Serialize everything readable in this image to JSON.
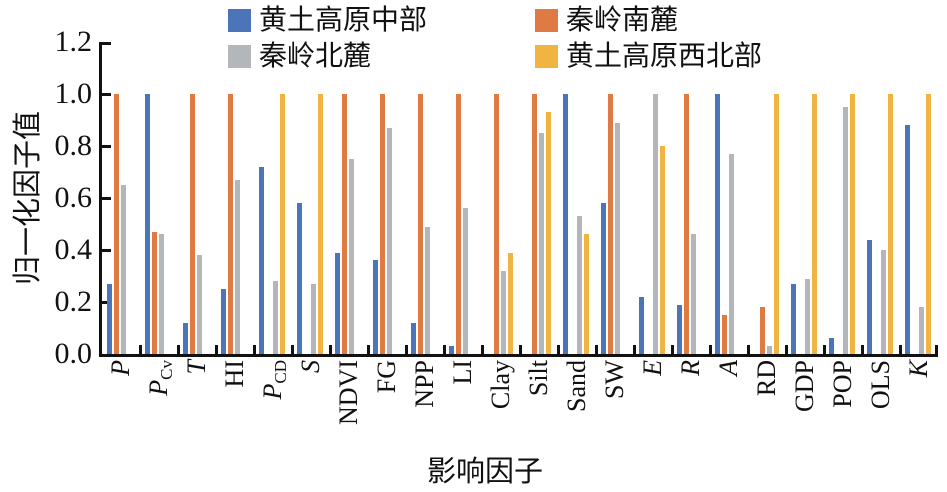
{
  "chart_data": {
    "type": "bar",
    "title": "",
    "ylabel": "归一化因子值",
    "xlabel": "影响因子",
    "ylim": [
      0,
      1.2
    ],
    "yticks": [
      "0.0",
      "0.2",
      "0.4",
      "0.6",
      "0.8",
      "1.0",
      "1.2"
    ],
    "grid": false,
    "legend_position": "top",
    "categories": [
      {
        "label": "P",
        "sub": "",
        "italic": true
      },
      {
        "label": "P",
        "sub": "Cv",
        "italic": true
      },
      {
        "label": "T",
        "sub": "",
        "italic": true
      },
      {
        "label": "HI",
        "sub": "",
        "italic": false
      },
      {
        "label": "P",
        "sub": "CD",
        "italic": true
      },
      {
        "label": "S",
        "sub": "",
        "italic": true
      },
      {
        "label": "NDVI",
        "sub": "",
        "italic": false
      },
      {
        "label": "FG",
        "sub": "",
        "italic": false
      },
      {
        "label": "NPP",
        "sub": "",
        "italic": false
      },
      {
        "label": "LI",
        "sub": "",
        "italic": false
      },
      {
        "label": "Clay",
        "sub": "",
        "italic": false
      },
      {
        "label": "Silt",
        "sub": "",
        "italic": false
      },
      {
        "label": "Sand",
        "sub": "",
        "italic": false
      },
      {
        "label": "SW",
        "sub": "",
        "italic": false
      },
      {
        "label": "E",
        "sub": "",
        "italic": true
      },
      {
        "label": "R",
        "sub": "",
        "italic": true
      },
      {
        "label": "A",
        "sub": "",
        "italic": true
      },
      {
        "label": "RD",
        "sub": "",
        "italic": false
      },
      {
        "label": "GDP",
        "sub": "",
        "italic": false
      },
      {
        "label": "POP",
        "sub": "",
        "italic": false
      },
      {
        "label": "OLS",
        "sub": "",
        "italic": false
      },
      {
        "label": "K",
        "sub": "",
        "italic": true
      }
    ],
    "series": [
      {
        "name": "黄土高原中部",
        "color": "#4C74B9",
        "values": [
          0.27,
          1.0,
          0.12,
          0.25,
          0.72,
          0.58,
          0.39,
          0.36,
          0.12,
          0.03,
          0,
          0,
          1.0,
          0.58,
          0.22,
          0.19,
          1.0,
          0,
          0.27,
          0.06,
          0.44,
          0.88
        ]
      },
      {
        "name": "秦岭南麓",
        "color": "#DF7A45",
        "values": [
          1.0,
          0.47,
          1.0,
          1.0,
          0,
          0,
          1.0,
          1.0,
          1.0,
          1.0,
          1.0,
          1.0,
          0,
          1.0,
          0,
          1.0,
          0.15,
          0.18,
          0,
          0,
          0,
          0
        ]
      },
      {
        "name": "秦岭北麓",
        "color": "#B3B6BA",
        "values": [
          0.65,
          0.46,
          0.38,
          0.67,
          0.28,
          0.27,
          0.75,
          0.87,
          0.49,
          0.56,
          0.32,
          0.85,
          0.53,
          0.89,
          1.0,
          0.46,
          0.77,
          0.03,
          0.29,
          0.95,
          0.4,
          0.18
        ]
      },
      {
        "name": "黄土高原西北部",
        "color": "#F0B541",
        "values": [
          0,
          0,
          0,
          0,
          1.0,
          1.0,
          0,
          0,
          0,
          0,
          0.39,
          0.93,
          0.46,
          0,
          0.8,
          0,
          0,
          1.0,
          1.0,
          1.0,
          1.0,
          1.0
        ]
      }
    ]
  }
}
